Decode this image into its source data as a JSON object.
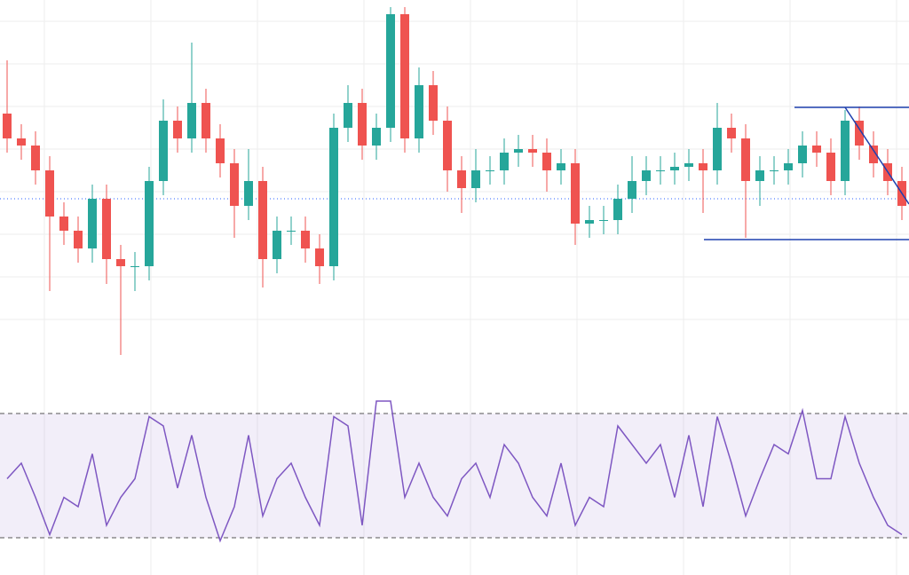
{
  "chart_data": [
    {
      "type": "candlestick",
      "up_color": "#26a69a",
      "down_color": "#ef5350",
      "open": [
        70,
        63,
        61,
        54,
        41,
        37,
        32,
        46,
        29,
        27,
        27,
        51,
        68,
        63,
        73,
        63,
        56,
        44,
        51,
        29,
        37,
        37,
        32,
        27,
        66,
        73,
        61,
        66,
        98,
        63,
        78,
        68,
        54,
        49,
        54,
        54,
        59,
        60,
        59,
        54,
        56,
        39,
        40,
        40,
        46,
        51,
        54,
        54,
        55,
        56,
        54,
        66,
        63,
        51,
        54,
        54,
        56,
        61,
        59,
        51,
        68,
        61,
        56,
        51
      ],
      "high": [
        85,
        67,
        65,
        58,
        45,
        41,
        50,
        50,
        33,
        31,
        55,
        74,
        72,
        90,
        77,
        67,
        60,
        60,
        55,
        41,
        41,
        41,
        36,
        70,
        78,
        77,
        70,
        100,
        100,
        83,
        82,
        72,
        58,
        60,
        58,
        63,
        64,
        64,
        63,
        60,
        60,
        44,
        44,
        50,
        58,
        58,
        58,
        59,
        60,
        60,
        73,
        70,
        67,
        58,
        58,
        60,
        65,
        65,
        63,
        71,
        72,
        65,
        60,
        55
      ],
      "low": [
        59,
        57,
        50,
        20,
        33,
        28,
        28,
        22,
        2,
        20,
        23,
        47,
        59,
        59,
        59,
        52,
        35,
        40,
        21,
        25,
        33,
        28,
        22,
        23,
        62,
        57,
        57,
        62,
        59,
        59,
        64,
        48,
        42,
        45,
        50,
        50,
        55,
        55,
        48,
        50,
        33,
        35,
        36,
        36,
        42,
        47,
        50,
        50,
        51,
        42,
        50,
        59,
        35,
        44,
        50,
        50,
        52,
        55,
        47,
        47,
        57,
        52,
        47,
        40
      ],
      "close": [
        63,
        61,
        54,
        41,
        37,
        32,
        46,
        29,
        27,
        27,
        51,
        68,
        63,
        73,
        63,
        56,
        44,
        51,
        29,
        37,
        37,
        32,
        27,
        66,
        73,
        61,
        66,
        98,
        63,
        78,
        68,
        54,
        49,
        54,
        54,
        59,
        60,
        59,
        54,
        56,
        39,
        40,
        40,
        46,
        51,
        54,
        54,
        55,
        56,
        54,
        66,
        63,
        51,
        54,
        54,
        56,
        61,
        59,
        51,
        68,
        61,
        56,
        51,
        44
      ],
      "ylim": [
        0,
        102
      ],
      "yticks": [
        12,
        24,
        36,
        48,
        60,
        72,
        84,
        96
      ],
      "grid": true,
      "price_line": 46
    },
    {
      "type": "line",
      "color": "#7e57c2",
      "values": [
        49,
        54,
        43,
        31,
        43,
        40,
        57,
        34,
        43,
        49,
        69,
        66,
        46,
        63,
        43,
        29,
        40,
        63,
        37,
        49,
        54,
        43,
        34,
        69,
        66,
        34,
        74,
        74,
        43,
        54,
        43,
        37,
        49,
        54,
        43,
        60,
        54,
        43,
        37,
        54,
        34,
        43,
        40,
        66,
        60,
        54,
        60,
        43,
        63,
        40,
        69,
        54,
        37,
        49,
        60,
        57,
        71,
        49,
        49,
        69,
        54,
        43,
        34,
        31
      ],
      "ylim": [
        18,
        84
      ],
      "bands": [
        30,
        70
      ],
      "yticks": [
        30,
        70
      ]
    }
  ]
}
